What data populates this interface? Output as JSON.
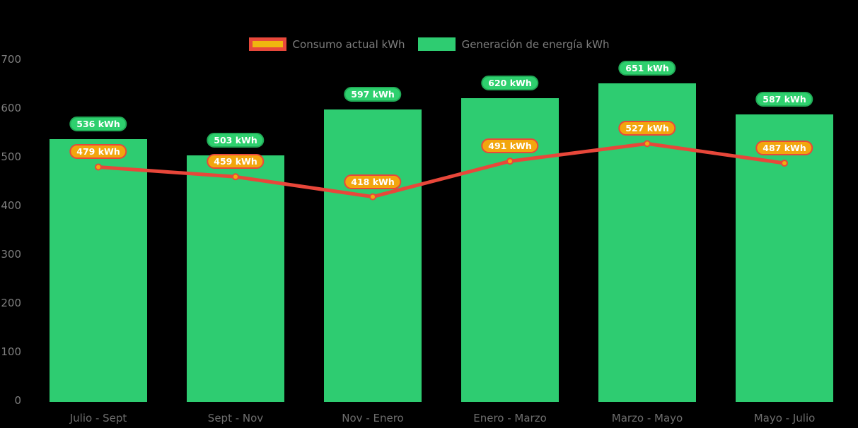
{
  "legend": {
    "position": "top",
    "items": [
      {
        "name": "consumo",
        "swatch_fill": "#efb60f",
        "swatch_border": "#e8483b"
      },
      {
        "name": "generacion",
        "swatch_fill": "#2ecc71",
        "swatch_border": null
      }
    ]
  },
  "colors": {
    "background": "#000000",
    "bar_green": "#2ecc71",
    "green_badge_fill": "#2ed06e",
    "green_badge_border": "#21ab57",
    "line_red": "#e8473a",
    "point_fill": "#f0ad0f",
    "orange_badge_fill": "#f2a60e",
    "orange_badge_border": "#e8483b",
    "axis_text": "#7f7f7f",
    "xlabel_text": "#6e6e6e",
    "legend_text": "#7c7c7c",
    "badge_text": "#ffffff"
  },
  "chart_data": {
    "type": "combo",
    "categories": [
      "Julio - Sept",
      "Sept - Nov",
      "Nov - Enero",
      "Enero - Marzo",
      "Marzo - Mayo",
      "Mayo - Julio"
    ],
    "series": [
      {
        "name": "Consumo actual kWh",
        "type": "line",
        "values": [
          479,
          459,
          418,
          491,
          527,
          487
        ],
        "labels": [
          "479 kWh",
          "459 kWh",
          "418 kWh",
          "491 kWh",
          "527 kWh",
          "487 kWh"
        ],
        "line_color": "#e8473a",
        "point_fill": "#f0ad0f",
        "point_border": "#e8483b",
        "label_fill": "#f2a60e",
        "label_border": "#e8483b"
      },
      {
        "name": "Generación de energía kWh",
        "type": "bar",
        "values": [
          536,
          503,
          597,
          620,
          651,
          587
        ],
        "labels": [
          "536 kWh",
          "503 kWh",
          "597 kWh",
          "620 kWh",
          "651 kWh",
          "587 kWh"
        ],
        "bar_color": "#2ecc71",
        "label_fill": "#2ed06e",
        "label_border": "#21ab57"
      }
    ],
    "unit": "kWh",
    "ylim": [
      0,
      700
    ],
    "yticks": [
      700,
      600,
      500,
      400,
      300,
      200,
      100,
      0
    ],
    "grid": false,
    "legend_position": "top-center",
    "xlabel": "",
    "ylabel": ""
  }
}
